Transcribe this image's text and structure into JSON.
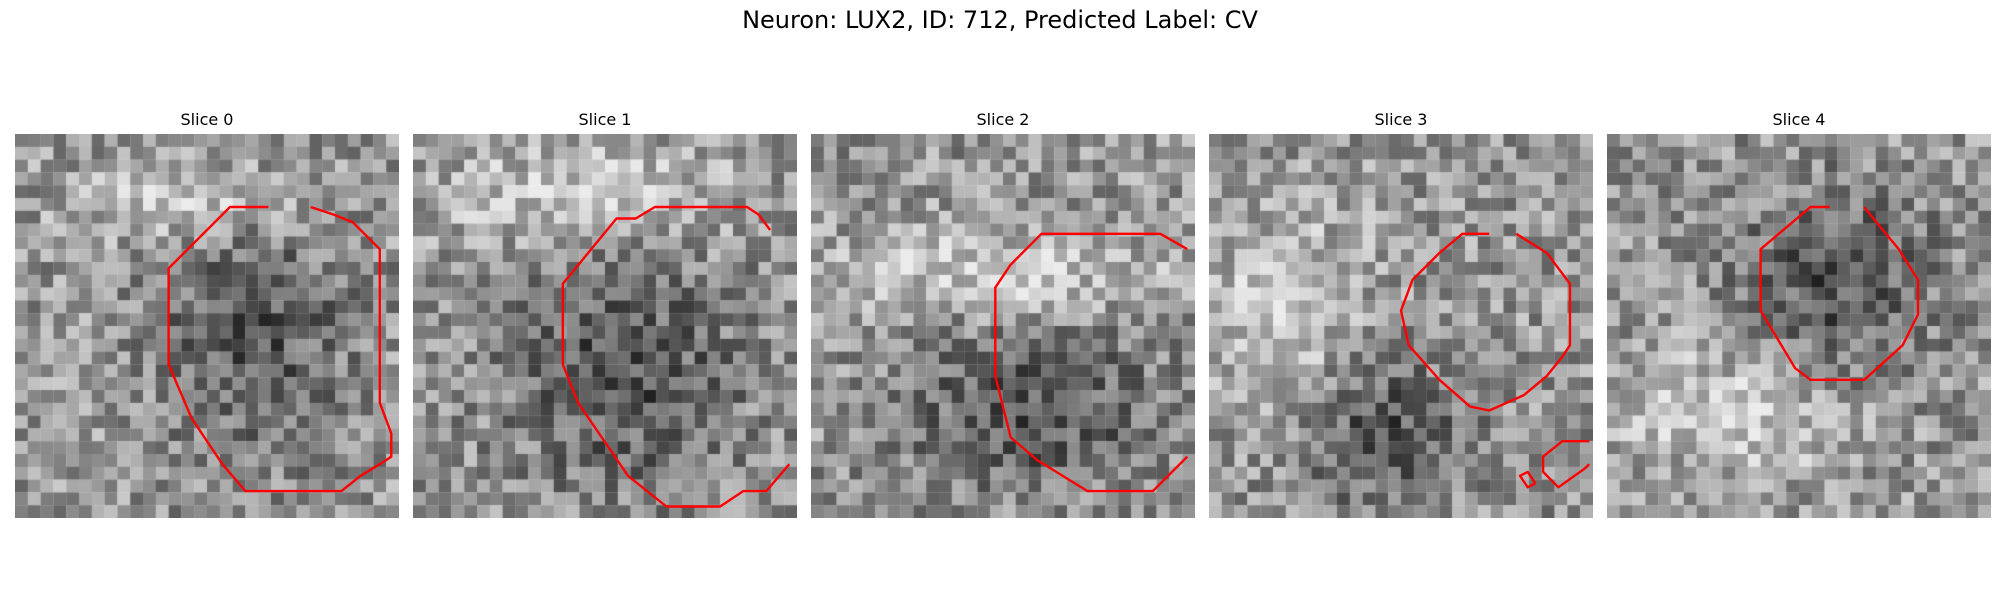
{
  "figure": {
    "title": "Neuron: LUX2, ID: 712, Predicted Label: CV",
    "contour_color": "#ff0000"
  },
  "panels": [
    {
      "label": "Slice 0",
      "seed": 11,
      "dark_region": [
        0.62,
        0.52,
        0.28,
        0.36
      ],
      "bright_region": [
        0.45,
        0.18,
        0.35,
        0.12
      ],
      "contours": [
        [
          [
            0.66,
            0.19
          ],
          [
            0.56,
            0.19
          ],
          [
            0.4,
            0.35
          ],
          [
            0.4,
            0.6
          ],
          [
            0.46,
            0.74
          ],
          [
            0.54,
            0.86
          ],
          [
            0.6,
            0.93
          ],
          [
            0.85,
            0.93
          ],
          [
            0.9,
            0.89
          ],
          [
            0.95,
            0.86
          ],
          [
            0.98,
            0.84
          ],
          [
            0.98,
            0.78
          ],
          [
            0.95,
            0.7
          ],
          [
            0.95,
            0.3
          ],
          [
            0.88,
            0.23
          ],
          [
            0.83,
            0.21
          ],
          [
            0.77,
            0.19
          ]
        ]
      ]
    },
    {
      "label": "Slice 1",
      "seed": 23,
      "dark_region": [
        0.55,
        0.62,
        0.36,
        0.36
      ],
      "bright_region": [
        0.45,
        0.16,
        0.45,
        0.16
      ],
      "contours": [
        [
          [
            0.93,
            0.25
          ],
          [
            0.9,
            0.21
          ],
          [
            0.87,
            0.19
          ],
          [
            0.63,
            0.19
          ],
          [
            0.58,
            0.22
          ],
          [
            0.53,
            0.22
          ],
          [
            0.39,
            0.39
          ],
          [
            0.39,
            0.6
          ],
          [
            0.43,
            0.7
          ],
          [
            0.56,
            0.89
          ],
          [
            0.66,
            0.97
          ],
          [
            0.8,
            0.97
          ],
          [
            0.86,
            0.93
          ],
          [
            0.92,
            0.93
          ],
          [
            0.98,
            0.86
          ]
        ]
      ]
    },
    {
      "label": "Slice 2",
      "seed": 37,
      "dark_region": [
        0.58,
        0.72,
        0.4,
        0.26
      ],
      "bright_region": [
        0.5,
        0.36,
        0.5,
        0.14
      ],
      "contours": [
        [
          [
            0.98,
            0.3
          ],
          [
            0.91,
            0.26
          ],
          [
            0.6,
            0.26
          ],
          [
            0.52,
            0.34
          ],
          [
            0.48,
            0.4
          ],
          [
            0.48,
            0.63
          ],
          [
            0.52,
            0.79
          ],
          [
            0.59,
            0.85
          ],
          [
            0.72,
            0.93
          ],
          [
            0.89,
            0.93
          ],
          [
            0.98,
            0.84
          ]
        ]
      ]
    },
    {
      "label": "Slice 3",
      "seed": 53,
      "dark_region": [
        0.45,
        0.78,
        0.26,
        0.24
      ],
      "bright_region": [
        0.2,
        0.45,
        0.24,
        0.3
      ],
      "contours": [
        [
          [
            0.73,
            0.26
          ],
          [
            0.66,
            0.26
          ],
          [
            0.6,
            0.31
          ],
          [
            0.53,
            0.38
          ],
          [
            0.5,
            0.46
          ],
          [
            0.52,
            0.55
          ],
          [
            0.6,
            0.64
          ],
          [
            0.68,
            0.71
          ],
          [
            0.73,
            0.72
          ],
          [
            0.82,
            0.68
          ],
          [
            0.88,
            0.63
          ],
          [
            0.92,
            0.58
          ],
          [
            0.94,
            0.55
          ],
          [
            0.94,
            0.39
          ],
          [
            0.88,
            0.31
          ],
          [
            0.8,
            0.26
          ]
        ],
        [
          [
            0.99,
            0.8
          ],
          [
            0.92,
            0.8
          ],
          [
            0.87,
            0.84
          ],
          [
            0.87,
            0.88
          ],
          [
            0.91,
            0.92
          ],
          [
            0.98,
            0.87
          ],
          [
            0.99,
            0.86
          ]
        ],
        [
          [
            0.85,
            0.91
          ],
          [
            0.83,
            0.88
          ],
          [
            0.81,
            0.89
          ],
          [
            0.83,
            0.92
          ],
          [
            0.85,
            0.91
          ]
        ]
      ]
    },
    {
      "label": "Slice 4",
      "seed": 71,
      "dark_region": [
        0.6,
        0.4,
        0.3,
        0.3
      ],
      "bright_region": [
        0.35,
        0.72,
        0.35,
        0.22
      ],
      "contours": [
        [
          [
            0.58,
            0.19
          ],
          [
            0.53,
            0.19
          ],
          [
            0.4,
            0.3
          ],
          [
            0.4,
            0.46
          ],
          [
            0.49,
            0.61
          ],
          [
            0.53,
            0.64
          ],
          [
            0.67,
            0.64
          ],
          [
            0.77,
            0.55
          ],
          [
            0.81,
            0.47
          ],
          [
            0.81,
            0.38
          ],
          [
            0.76,
            0.3
          ],
          [
            0.71,
            0.24
          ],
          [
            0.67,
            0.19
          ]
        ]
      ]
    }
  ]
}
